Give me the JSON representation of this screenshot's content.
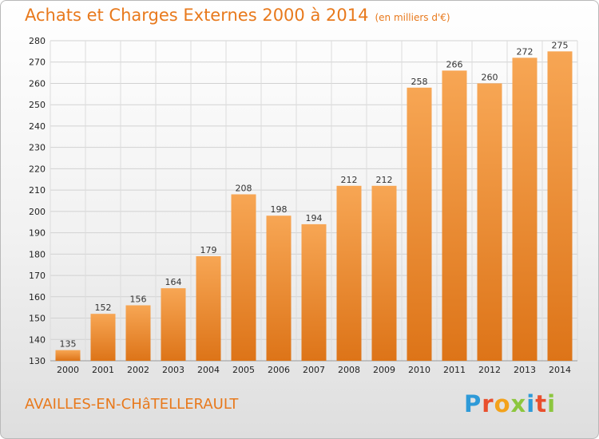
{
  "chart_data": {
    "type": "bar",
    "title": "Achats et Charges Externes 2000 à 2014",
    "unit_note": "(en milliers d'€)",
    "subtitle": "AVAILLES-EN-CHâTELLERAULT",
    "categories": [
      "2000",
      "2001",
      "2002",
      "2003",
      "2004",
      "2005",
      "2006",
      "2007",
      "2008",
      "2009",
      "2010",
      "2011",
      "2012",
      "2013",
      "2014"
    ],
    "values": [
      135,
      152,
      156,
      164,
      179,
      208,
      198,
      194,
      212,
      212,
      258,
      266,
      260,
      272,
      275
    ],
    "ylim": [
      130,
      280
    ],
    "yticks": [
      130,
      140,
      150,
      160,
      170,
      180,
      190,
      200,
      210,
      220,
      230,
      240,
      250,
      260,
      270,
      280
    ],
    "grid": true,
    "bar_color_top": "#f7a654",
    "bar_color_bottom": "#dd7418"
  },
  "brand": {
    "logo_letters": [
      "P",
      "r",
      "o",
      "x",
      "i",
      "t",
      "i"
    ]
  }
}
